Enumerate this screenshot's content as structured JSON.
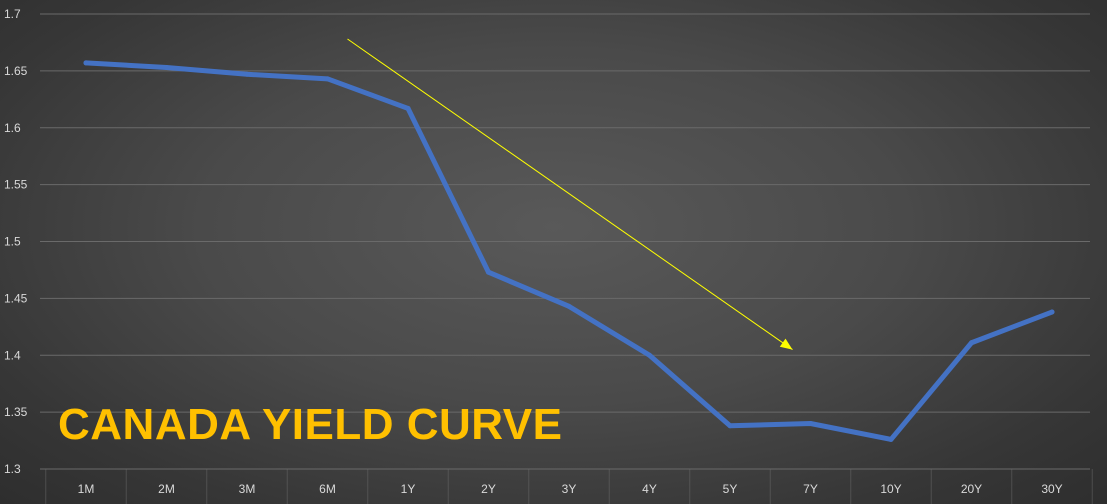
{
  "chart_data": {
    "type": "line",
    "title": "CANADA YIELD CURVE",
    "xlabel": "",
    "ylabel": "",
    "categories": [
      "1M",
      "2M",
      "3M",
      "6M",
      "1Y",
      "2Y",
      "3Y",
      "4Y",
      "5Y",
      "7Y",
      "10Y",
      "20Y",
      "30Y"
    ],
    "series": [
      {
        "values": [
          1.657,
          1.653,
          1.647,
          1.643,
          1.617,
          1.473,
          1.443,
          1.4,
          1.338,
          1.34,
          1.326,
          1.411,
          1.438
        ]
      }
    ],
    "ylim": [
      1.3,
      1.7
    ],
    "yticks": [
      "1.3",
      "1.35",
      "1.4",
      "1.45",
      "1.5",
      "1.55",
      "1.6",
      "1.65",
      "1.7"
    ],
    "grid": true,
    "legend": "none",
    "annotation": {
      "type": "arrow",
      "from": {
        "x": "6M",
        "y": 1.678
      },
      "to": {
        "x": "7Y",
        "y": 1.405
      }
    },
    "colors": {
      "line": "#4472c4",
      "title": "#ffc000",
      "arrow": "#ffff00",
      "grid": "#6a6a6a",
      "ticks": "#d9d9d9"
    }
  }
}
